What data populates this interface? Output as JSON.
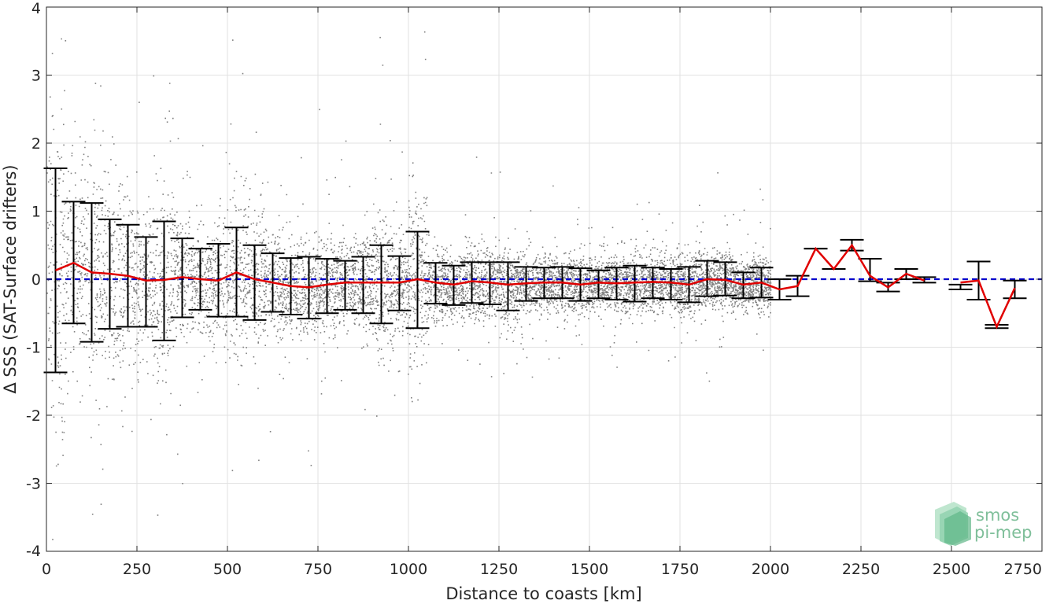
{
  "chart_data": {
    "type": "scatter",
    "title": "",
    "xlabel": "Distance to coasts [km]",
    "ylabel": "Δ SSS (SAT-Surface drifters)",
    "xlim": [
      0,
      2750
    ],
    "ylim": [
      -4,
      4
    ],
    "xticks": [
      0,
      250,
      500,
      750,
      1000,
      1250,
      1500,
      1750,
      2000,
      2250,
      2500,
      2750
    ],
    "yticks": [
      -4,
      -3,
      -2,
      -1,
      0,
      1,
      2,
      3,
      4
    ],
    "grid": true,
    "reference_line": {
      "y": 0,
      "color": "#0000cc",
      "style": "dashed"
    },
    "scatter_color": "#808080",
    "mean_line_color": "#e00000",
    "errorbar_color": "#000000",
    "bins": {
      "x": [
        25,
        75,
        125,
        175,
        225,
        275,
        325,
        375,
        425,
        475,
        525,
        575,
        625,
        675,
        725,
        775,
        825,
        875,
        925,
        975,
        1025,
        1075,
        1125,
        1175,
        1225,
        1275,
        1325,
        1375,
        1425,
        1475,
        1525,
        1575,
        1625,
        1675,
        1725,
        1775,
        1825,
        1875,
        1925,
        1975,
        2025,
        2075,
        2125,
        2175,
        2225,
        2275,
        2325,
        2375,
        2425,
        2525,
        2575,
        2625,
        2675
      ],
      "mean": [
        0.13,
        0.24,
        0.1,
        0.08,
        0.05,
        -0.02,
        -0.01,
        0.03,
        0.0,
        -0.02,
        0.1,
        0.0,
        -0.05,
        -0.1,
        -0.12,
        -0.08,
        -0.05,
        -0.05,
        -0.05,
        -0.05,
        0.0,
        -0.05,
        -0.08,
        -0.03,
        -0.05,
        -0.08,
        -0.06,
        -0.05,
        -0.05,
        -0.08,
        -0.05,
        -0.06,
        -0.05,
        -0.04,
        -0.05,
        -0.08,
        0.0,
        -0.01,
        -0.08,
        -0.05,
        -0.15,
        -0.1,
        0.45,
        0.15,
        0.5,
        0.05,
        -0.12,
        0.08,
        -0.02,
        -0.05,
        -0.02,
        -0.7,
        -0.13
      ],
      "upper": [
        1.63,
        1.14,
        1.12,
        0.88,
        0.8,
        0.62,
        0.85,
        0.6,
        0.45,
        0.52,
        0.76,
        0.5,
        0.38,
        0.31,
        0.33,
        0.3,
        0.27,
        0.33,
        0.5,
        0.34,
        0.7,
        0.24,
        0.2,
        0.25,
        0.25,
        0.25,
        0.18,
        0.17,
        0.18,
        0.16,
        0.13,
        0.17,
        0.2,
        0.17,
        0.15,
        0.18,
        0.27,
        0.25,
        0.1,
        0.17,
        0.0,
        0.05,
        0.45,
        0.15,
        0.58,
        0.3,
        -0.05,
        0.15,
        0.03,
        -0.08,
        0.26,
        -0.67,
        -0.02
      ],
      "lower": [
        -1.37,
        -0.65,
        -0.92,
        -0.73,
        -0.7,
        -0.7,
        -0.9,
        -0.56,
        -0.45,
        -0.55,
        -0.55,
        -0.6,
        -0.48,
        -0.52,
        -0.58,
        -0.5,
        -0.45,
        -0.5,
        -0.65,
        -0.46,
        -0.72,
        -0.36,
        -0.38,
        -0.35,
        -0.37,
        -0.46,
        -0.32,
        -0.28,
        -0.28,
        -0.32,
        -0.28,
        -0.3,
        -0.33,
        -0.28,
        -0.3,
        -0.34,
        -0.25,
        -0.24,
        -0.28,
        -0.27,
        -0.3,
        -0.25,
        0.45,
        0.15,
        0.42,
        -0.03,
        -0.18,
        0.0,
        -0.05,
        -0.15,
        -0.3,
        -0.72,
        -0.28
      ]
    }
  },
  "logo": {
    "line1": "smos",
    "line2": "pi-mep"
  }
}
